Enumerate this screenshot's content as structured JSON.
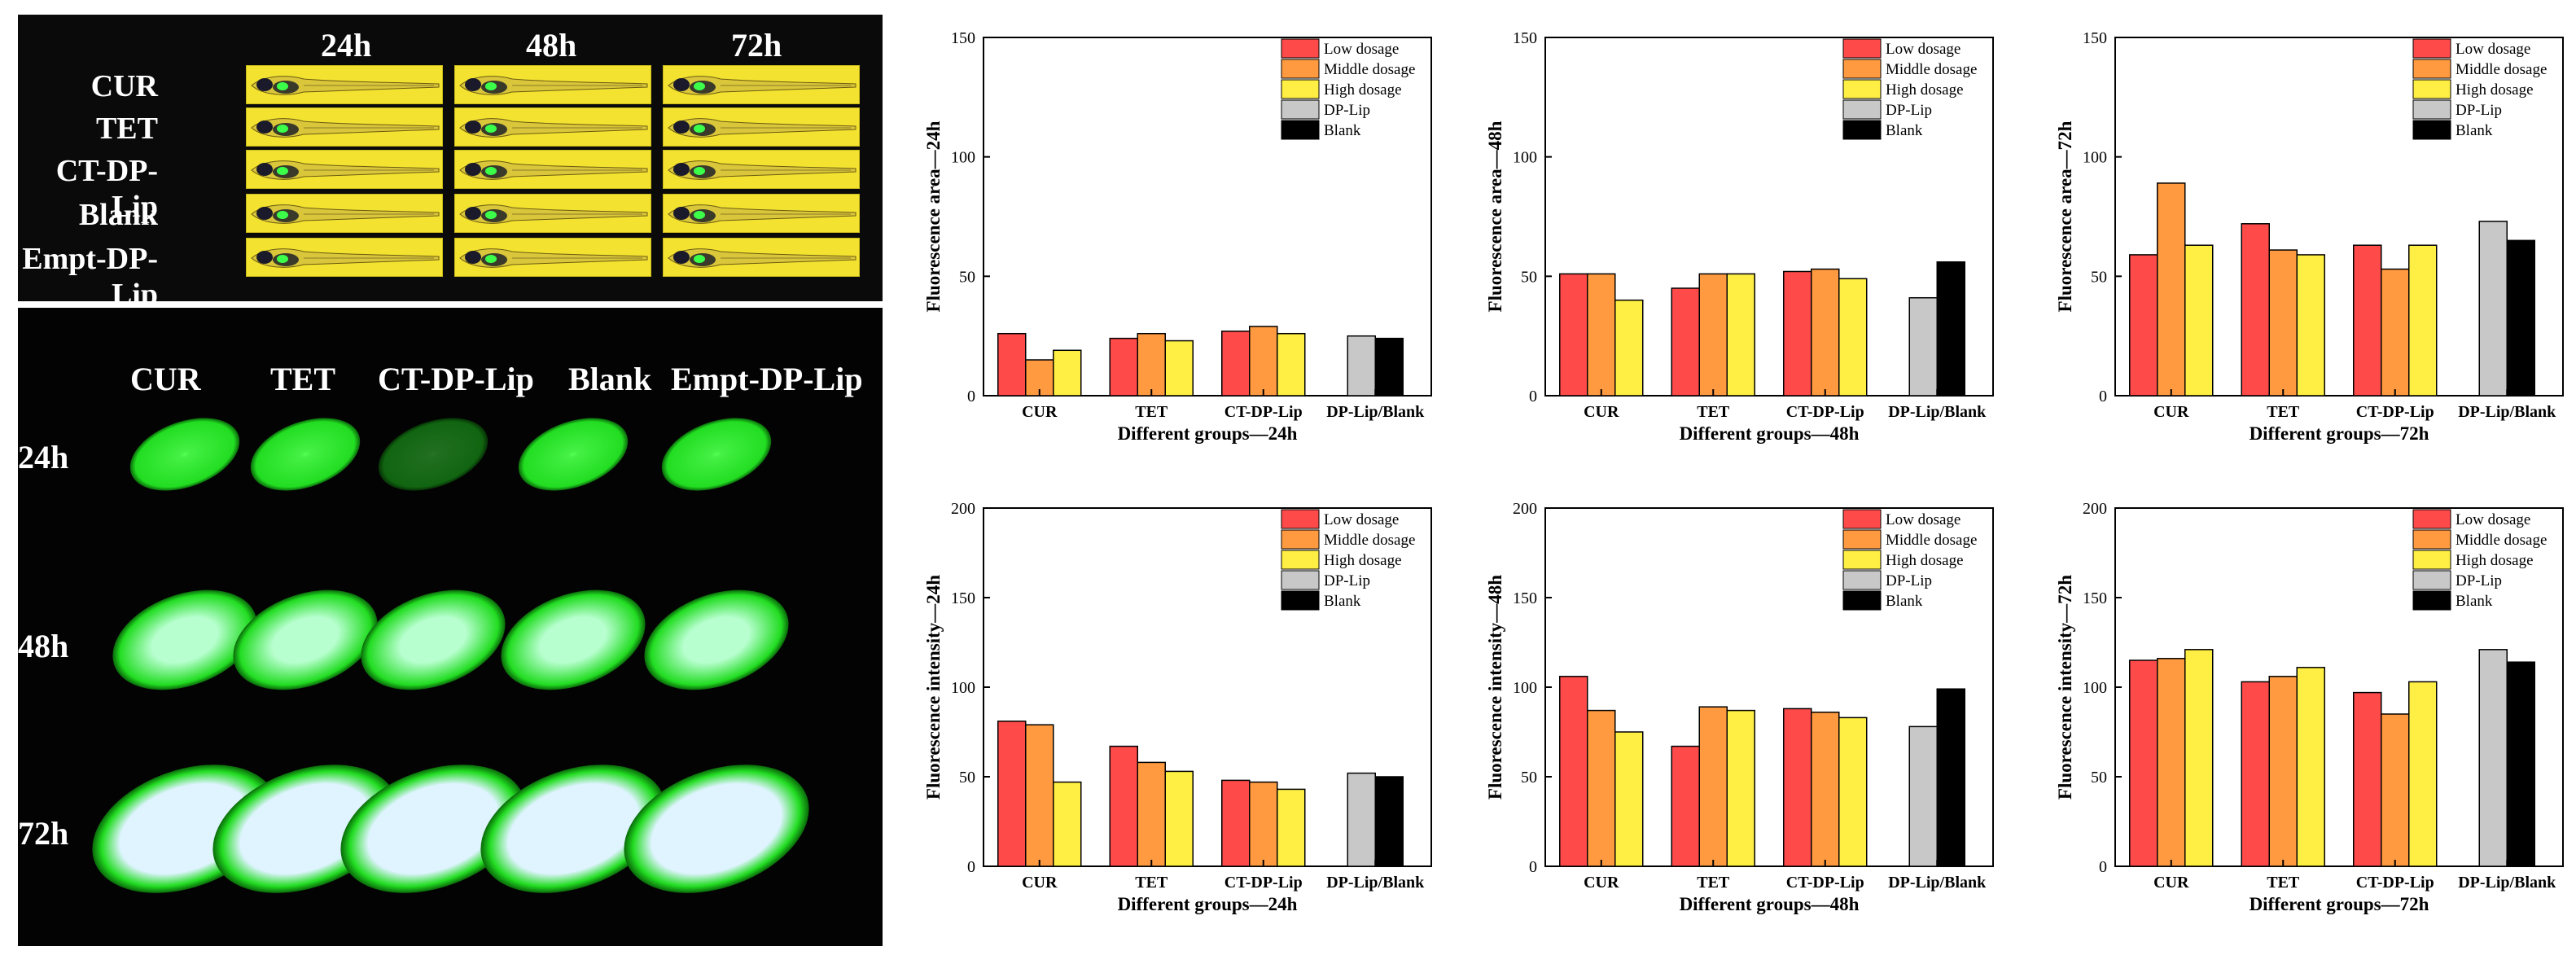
{
  "top_panel": {
    "times": [
      "24h",
      "48h",
      "72h"
    ],
    "groups": [
      "CUR",
      "TET",
      "CT-DP-Lip",
      "Blank",
      "Empt-DP-Lip"
    ]
  },
  "bottom_panel": {
    "groups": [
      "CUR",
      "TET",
      "CT-DP-Lip",
      "Blank",
      "Empt-DP-Lip"
    ],
    "times": [
      "24h",
      "48h",
      "72h"
    ]
  },
  "colors": {
    "low": "#ff4a4a",
    "middle": "#ff9a40",
    "high": "#ffee44",
    "dplip": "#c8c8c8",
    "blank": "#000000"
  },
  "chart_data": [
    {
      "type": "bar",
      "title": "",
      "ylabel": "Fluorescence area—24h",
      "xlabel": "Different groups—24h",
      "ylim": [
        0,
        150
      ],
      "yticks": [
        0,
        50,
        100,
        150
      ],
      "categories": [
        "CUR",
        "TET",
        "CT-DP-Lip",
        "DP-Lip/Blank"
      ],
      "legend": [
        "Low dosage",
        "Middle dosage",
        "High dosage",
        "DP-Lip",
        "Blank"
      ],
      "series": [
        {
          "name": "Low dosage",
          "values": [
            26,
            24,
            27,
            null
          ]
        },
        {
          "name": "Middle dosage",
          "values": [
            15,
            26,
            29,
            null
          ]
        },
        {
          "name": "High dosage",
          "values": [
            19,
            23,
            26,
            null
          ]
        },
        {
          "name": "DP-Lip",
          "values": [
            null,
            null,
            null,
            25
          ]
        },
        {
          "name": "Blank",
          "values": [
            null,
            null,
            null,
            24
          ]
        }
      ]
    },
    {
      "type": "bar",
      "title": "",
      "ylabel": "Fluorescence area—48h",
      "xlabel": "Different groups—48h",
      "ylim": [
        0,
        150
      ],
      "yticks": [
        0,
        50,
        100,
        150
      ],
      "categories": [
        "CUR",
        "TET",
        "CT-DP-Lip",
        "DP-Lip/Blank"
      ],
      "legend": [
        "Low dosage",
        "Middle dosage",
        "High dosage",
        "DP-Lip",
        "Blank"
      ],
      "series": [
        {
          "name": "Low dosage",
          "values": [
            51,
            45,
            52,
            null
          ]
        },
        {
          "name": "Middle dosage",
          "values": [
            51,
            51,
            53,
            null
          ]
        },
        {
          "name": "High dosage",
          "values": [
            40,
            51,
            49,
            null
          ]
        },
        {
          "name": "DP-Lip",
          "values": [
            null,
            null,
            null,
            41
          ]
        },
        {
          "name": "Blank",
          "values": [
            null,
            null,
            null,
            56
          ]
        }
      ]
    },
    {
      "type": "bar",
      "title": "",
      "ylabel": "Fluorescence area—72h",
      "xlabel": "Different groups—72h",
      "ylim": [
        0,
        150
      ],
      "yticks": [
        0,
        50,
        100,
        150
      ],
      "categories": [
        "CUR",
        "TET",
        "CT-DP-Lip",
        "DP-Lip/Blank"
      ],
      "legend": [
        "Low dosage",
        "Middle dosage",
        "High dosage",
        "DP-Lip",
        "Blank"
      ],
      "series": [
        {
          "name": "Low dosage",
          "values": [
            59,
            72,
            63,
            null
          ]
        },
        {
          "name": "Middle dosage",
          "values": [
            89,
            61,
            53,
            null
          ]
        },
        {
          "name": "High dosage",
          "values": [
            63,
            59,
            63,
            null
          ]
        },
        {
          "name": "DP-Lip",
          "values": [
            null,
            null,
            null,
            73
          ]
        },
        {
          "name": "Blank",
          "values": [
            null,
            null,
            null,
            65
          ]
        }
      ]
    },
    {
      "type": "bar",
      "title": "",
      "ylabel": "Fluorescence intensity—24h",
      "xlabel": "Different groups—24h",
      "ylim": [
        0,
        200
      ],
      "yticks": [
        0,
        50,
        100,
        150,
        200
      ],
      "categories": [
        "CUR",
        "TET",
        "CT-DP-Lip",
        "DP-Lip/Blank"
      ],
      "legend": [
        "Low dosage",
        "Middle dosage",
        "High dosage",
        "DP-Lip",
        "Blank"
      ],
      "series": [
        {
          "name": "Low dosage",
          "values": [
            81,
            67,
            48,
            null
          ]
        },
        {
          "name": "Middle dosage",
          "values": [
            79,
            58,
            47,
            null
          ]
        },
        {
          "name": "High dosage",
          "values": [
            47,
            53,
            43,
            null
          ]
        },
        {
          "name": "DP-Lip",
          "values": [
            null,
            null,
            null,
            52
          ]
        },
        {
          "name": "Blank",
          "values": [
            null,
            null,
            null,
            50
          ]
        }
      ]
    },
    {
      "type": "bar",
      "title": "",
      "ylabel": "Fluorescence intensity—48h",
      "xlabel": "Different groups—48h",
      "ylim": [
        0,
        200
      ],
      "yticks": [
        0,
        50,
        100,
        150,
        200
      ],
      "categories": [
        "CUR",
        "TET",
        "CT-DP-Lip",
        "DP-Lip/Blank"
      ],
      "legend": [
        "Low dosage",
        "Middle dosage",
        "High dosage",
        "DP-Lip",
        "Blank"
      ],
      "series": [
        {
          "name": "Low dosage",
          "values": [
            106,
            67,
            88,
            null
          ]
        },
        {
          "name": "Middle dosage",
          "values": [
            87,
            89,
            86,
            null
          ]
        },
        {
          "name": "High dosage",
          "values": [
            75,
            87,
            83,
            null
          ]
        },
        {
          "name": "DP-Lip",
          "values": [
            null,
            null,
            null,
            78
          ]
        },
        {
          "name": "Blank",
          "values": [
            null,
            null,
            null,
            99
          ]
        }
      ]
    },
    {
      "type": "bar",
      "title": "",
      "ylabel": "Fluorescence intensity—72h",
      "xlabel": "Different groups—72h",
      "ylim": [
        0,
        200
      ],
      "yticks": [
        0,
        50,
        100,
        150,
        200
      ],
      "categories": [
        "CUR",
        "TET",
        "CT-DP-Lip",
        "DP-Lip/Blank"
      ],
      "legend": [
        "Low dosage",
        "Middle dosage",
        "High dosage",
        "DP-Lip",
        "Blank"
      ],
      "series": [
        {
          "name": "Low dosage",
          "values": [
            115,
            103,
            97,
            null
          ]
        },
        {
          "name": "Middle dosage",
          "values": [
            116,
            106,
            85,
            null
          ]
        },
        {
          "name": "High dosage",
          "values": [
            121,
            111,
            103,
            null
          ]
        },
        {
          "name": "DP-Lip",
          "values": [
            null,
            null,
            null,
            121
          ]
        },
        {
          "name": "Blank",
          "values": [
            null,
            null,
            null,
            114
          ]
        }
      ]
    }
  ]
}
